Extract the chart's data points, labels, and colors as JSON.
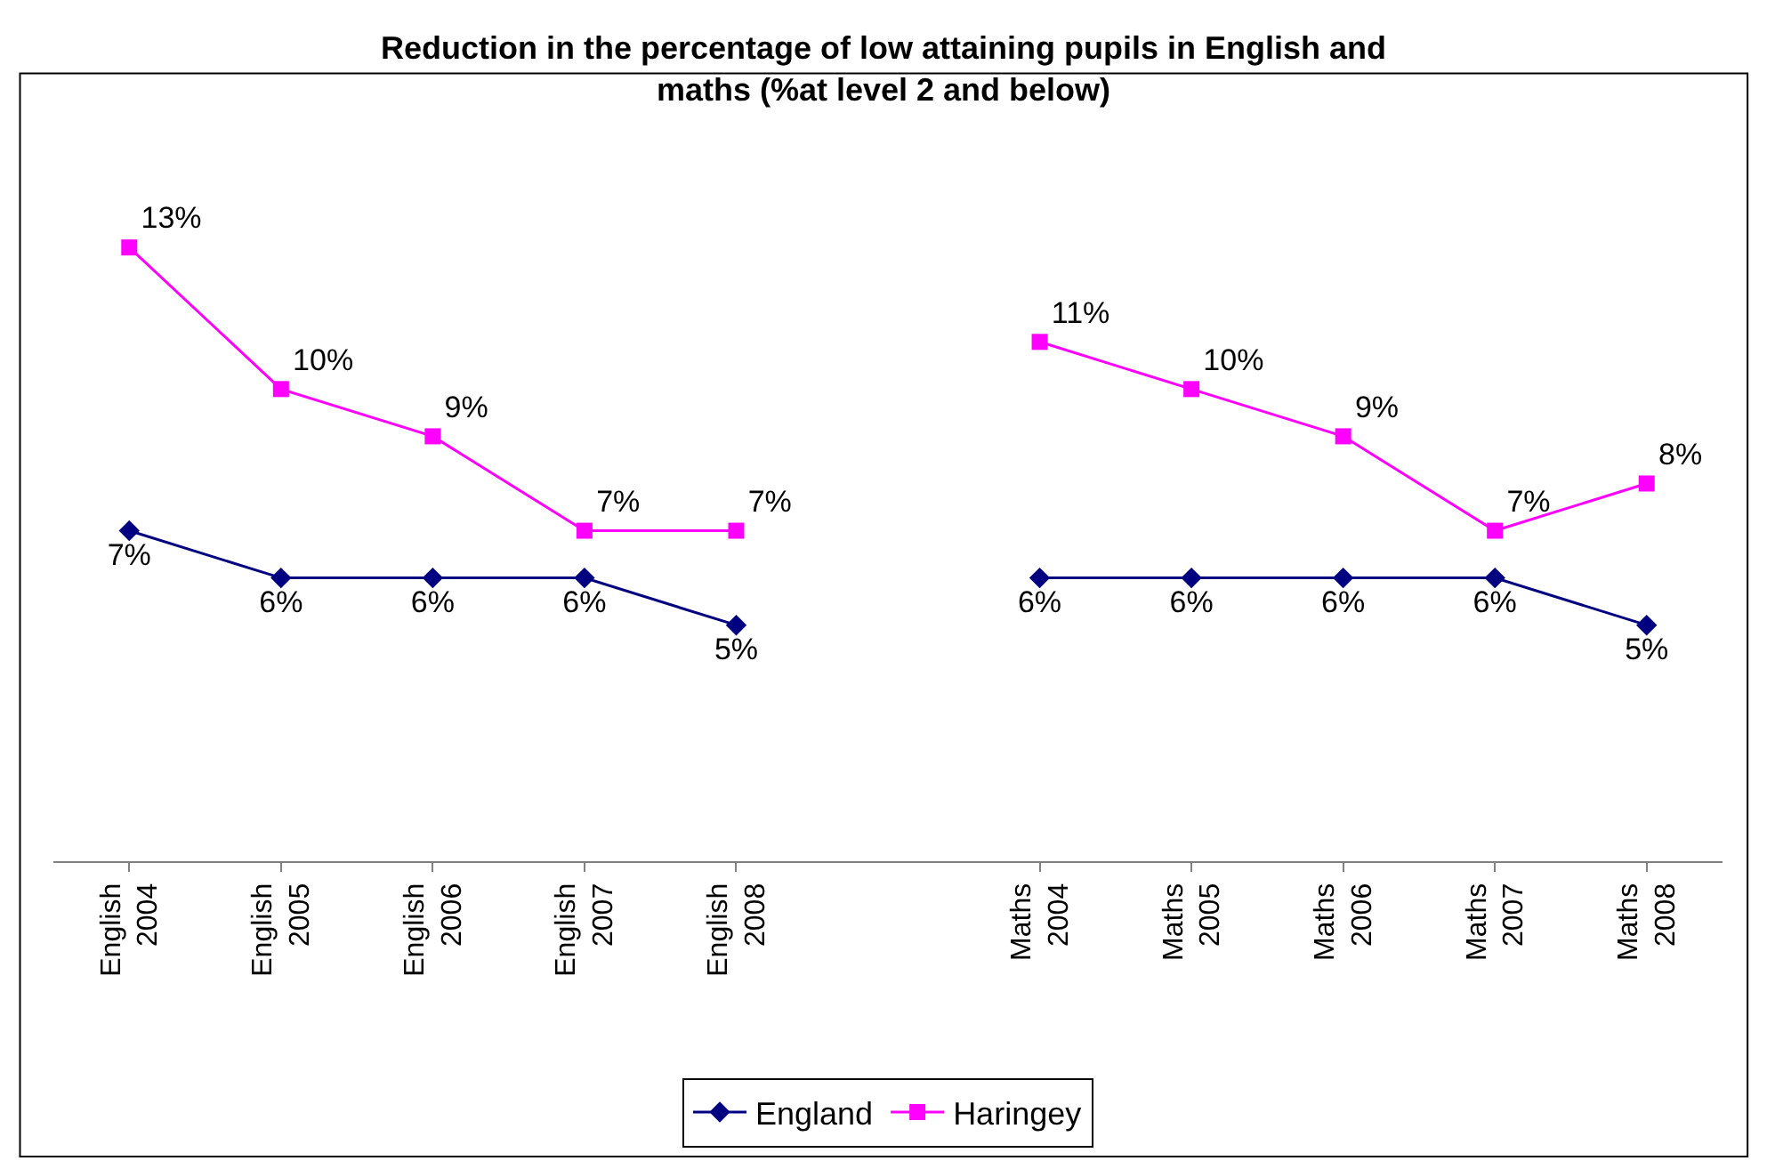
{
  "chart_data": {
    "type": "line",
    "title": "Reduction in the percentage of low attaining pupils in English and maths (%at level 2 and below)",
    "categories": [
      "English 2004",
      "English 2005",
      "English 2006",
      "English 2007",
      "English 2008",
      null,
      "Maths 2004",
      "Maths 2005",
      "Maths 2006",
      "Maths 2007",
      "Maths 2008"
    ],
    "series": [
      {
        "name": "England",
        "color": "#000080",
        "marker": "diamond",
        "values": [
          7,
          6,
          6,
          6,
          5,
          null,
          6,
          6,
          6,
          6,
          5
        ],
        "value_labels": [
          "7%",
          "6%",
          "6%",
          "6%",
          "5%",
          null,
          "6%",
          "6%",
          "6%",
          "6%",
          "5%"
        ]
      },
      {
        "name": "Haringey",
        "color": "#ff00ff",
        "marker": "square",
        "values": [
          13,
          10,
          9,
          7,
          7,
          null,
          11,
          10,
          9,
          7,
          8
        ],
        "value_labels": [
          "13%",
          "10%",
          "9%",
          "7%",
          "7%",
          null,
          "11%",
          "10%",
          "9%",
          "7%",
          "8%"
        ]
      }
    ],
    "legend": "bottom"
  }
}
